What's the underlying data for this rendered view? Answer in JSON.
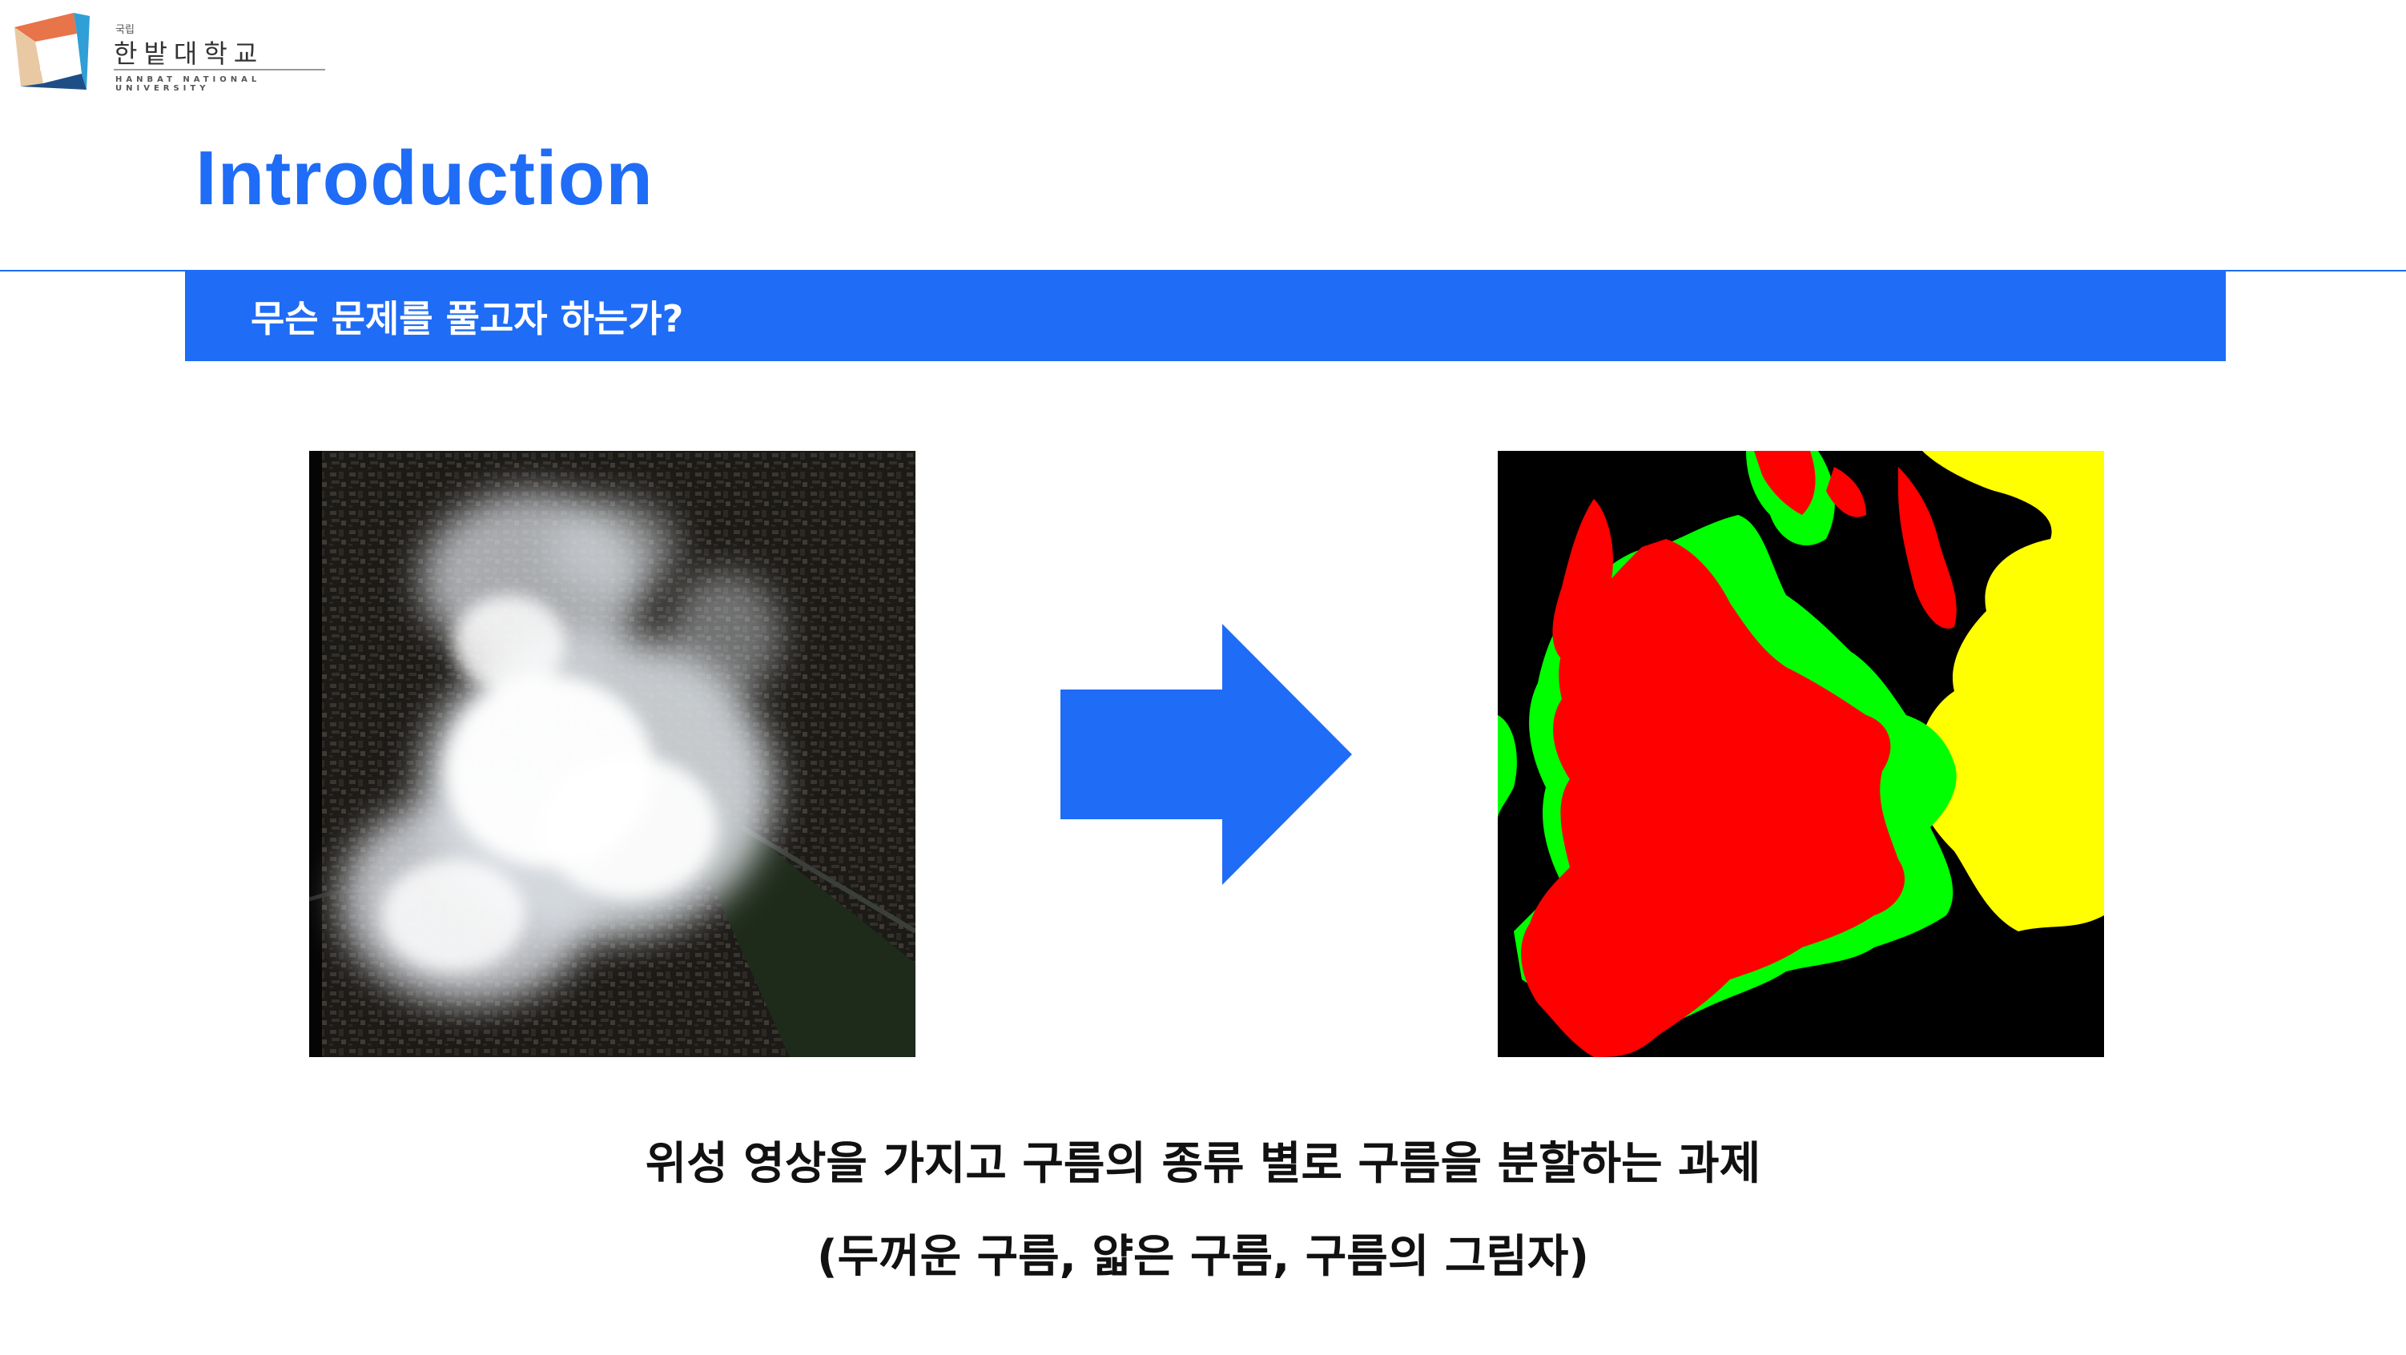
{
  "logo": {
    "small_text": "국립",
    "name": "한밭대학교",
    "english": "HANBAT NATIONAL UNIVERSITY",
    "colors": [
      "#e8744a",
      "#2f9fd6",
      "#1d4f86",
      "#e9c9a3"
    ]
  },
  "slide": {
    "title": "Introduction",
    "banner": "무슨 문제를 풀고자 하는가?",
    "accent_color": "#1f6cf6"
  },
  "figure": {
    "left_image": "satellite-cloud-image",
    "arrow": "right-arrow-icon",
    "right_image": "segmentation-mask",
    "mask_colors": {
      "background": "#000000",
      "red": "#ff0000",
      "green": "#00ff00",
      "yellow": "#ffff00"
    }
  },
  "caption": {
    "line1": "위성 영상을 가지고 구름의 종류 별로 구름을 분할하는 과제",
    "line2": "(두꺼운 구름, 얇은 구름, 구름의 그림자)"
  }
}
